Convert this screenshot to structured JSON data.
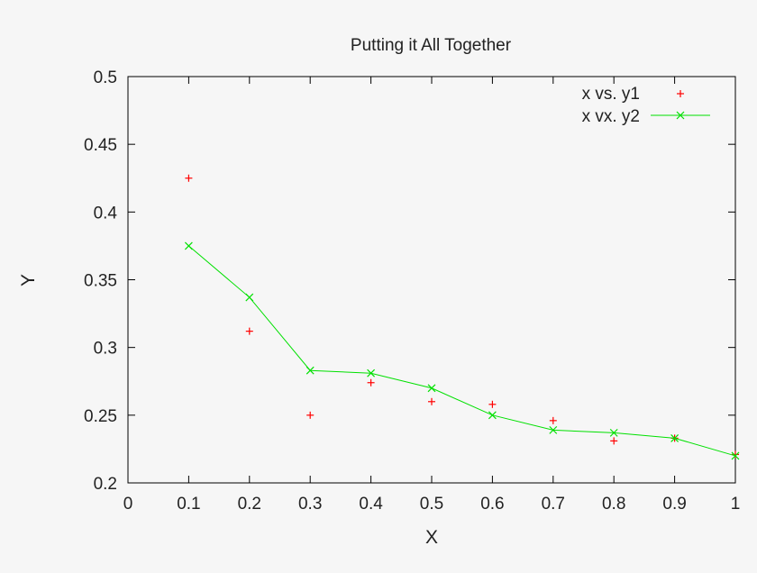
{
  "chart_data": {
    "type": "scatter",
    "title": "Putting it All Together",
    "xlabel": "X",
    "ylabel": "Y",
    "xlim": [
      0,
      1
    ],
    "ylim": [
      0.2,
      0.5
    ],
    "x_ticks": [
      "0",
      "0.1",
      "0.2",
      "0.3",
      "0.4",
      "0.5",
      "0.6",
      "0.7",
      "0.8",
      "0.9",
      "1"
    ],
    "y_ticks": [
      "0.2",
      "0.25",
      "0.3",
      "0.35",
      "0.4",
      "0.45",
      "0.5"
    ],
    "grid": false,
    "legend_position": "top-right",
    "series": [
      {
        "name": "x vs. y1",
        "style": "points",
        "marker": "plus",
        "color": "#ff0000",
        "x": [
          0.1,
          0.2,
          0.3,
          0.4,
          0.5,
          0.6,
          0.7,
          0.8,
          0.9,
          1.0
        ],
        "y": [
          0.425,
          0.312,
          0.25,
          0.274,
          0.26,
          0.258,
          0.246,
          0.231,
          0.233,
          0.221
        ]
      },
      {
        "name": "x vx. y2",
        "style": "linespoints",
        "marker": "cross",
        "color": "#00e000",
        "x": [
          0.1,
          0.2,
          0.3,
          0.4,
          0.5,
          0.6,
          0.7,
          0.8,
          0.9,
          1.0
        ],
        "y": [
          0.375,
          0.337,
          0.283,
          0.281,
          0.27,
          0.25,
          0.239,
          0.237,
          0.233,
          0.22
        ]
      }
    ]
  }
}
